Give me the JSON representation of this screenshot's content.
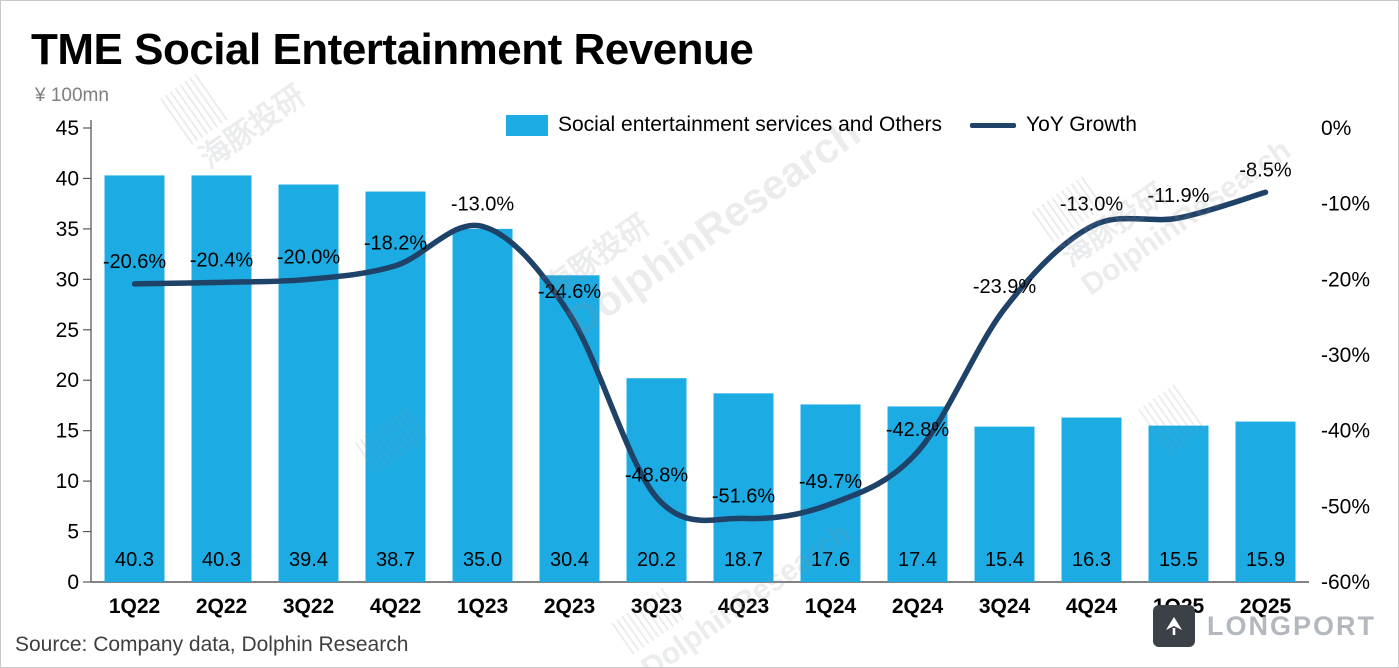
{
  "title": "TME Social Entertainment Revenue",
  "unit": "¥ 100mn",
  "legend": {
    "bar_label": "Social entertainment services and Others",
    "line_label": "YoY Growth"
  },
  "source": "Source: Company data, Dolphin Research",
  "watermark": {
    "cn": "海豚投研",
    "en": "DolphinResearch"
  },
  "logo_text": "LONGPORT",
  "colors": {
    "bar": "#1CACE3",
    "line": "#1F4268",
    "axis": "#595959",
    "text": "#000000",
    "unit_text": "#7F7F7F"
  },
  "chart_data": {
    "type": "bar+line",
    "title": "TME Social Entertainment Revenue",
    "ylabel_left": "¥ 100mn",
    "categories": [
      "1Q22",
      "2Q22",
      "3Q22",
      "4Q22",
      "1Q23",
      "2Q23",
      "3Q23",
      "4Q23",
      "1Q24",
      "2Q24",
      "3Q24",
      "4Q24",
      "1Q25",
      "2Q25"
    ],
    "series": [
      {
        "name": "Social entertainment services and Others",
        "type": "bar",
        "axis": "left",
        "values": [
          40.3,
          40.3,
          39.4,
          38.7,
          35.0,
          30.4,
          20.2,
          18.7,
          17.6,
          17.4,
          15.4,
          16.3,
          15.5,
          15.9
        ]
      },
      {
        "name": "YoY Growth",
        "type": "line",
        "axis": "right",
        "values": [
          -20.6,
          -20.4,
          -20.0,
          -18.2,
          -13.0,
          -24.6,
          -48.8,
          -51.6,
          -49.7,
          -42.8,
          -23.9,
          -13.0,
          -11.9,
          -8.5
        ]
      }
    ],
    "left_axis": {
      "min": 0,
      "max": 45,
      "step": 5,
      "ticks": [
        0,
        5,
        10,
        15,
        20,
        25,
        30,
        35,
        40,
        45
      ]
    },
    "right_axis": {
      "min": -60,
      "max": 0,
      "step": 10,
      "tick_labels": [
        "0%",
        "-10%",
        "-20%",
        "-30%",
        "-40%",
        "-50%",
        "-60%"
      ]
    },
    "grid": false,
    "legend_position": "top",
    "data_labels": {
      "bar": [
        "40.3",
        "40.3",
        "39.4",
        "38.7",
        "35.0",
        "30.4",
        "20.2",
        "18.7",
        "17.6",
        "17.4",
        "15.4",
        "16.3",
        "15.5",
        "15.9"
      ],
      "line": [
        "-20.6%",
        "-20.4%",
        "-20.0%",
        "-18.2%",
        "-13.0%",
        "-24.6%",
        "-48.8%",
        "-51.6%",
        "-49.7%",
        "-42.8%",
        "-23.9%",
        "-13.0%",
        "-11.9%",
        "-8.5%"
      ]
    }
  }
}
